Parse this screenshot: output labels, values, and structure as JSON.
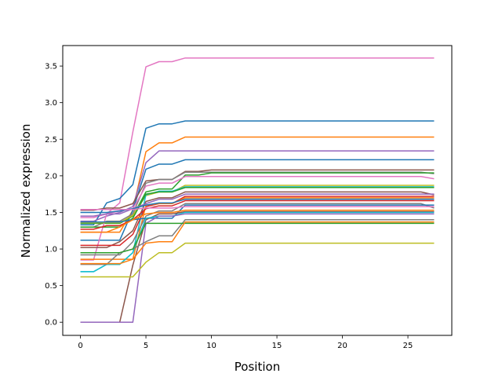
{
  "chart_data": {
    "type": "line",
    "title": "",
    "xlabel": "Position",
    "ylabel": "Normalized expression",
    "xlim": [
      -1.35,
      28.35
    ],
    "ylim": [
      -0.18,
      3.78
    ],
    "xticks": [
      0,
      5,
      10,
      15,
      20,
      25
    ],
    "yticks": [
      0.0,
      0.5,
      1.0,
      1.5,
      2.0,
      2.5,
      3.0,
      3.5
    ],
    "grid": false,
    "legend": "none",
    "x": [
      0,
      1,
      2,
      3,
      4,
      5,
      6,
      7,
      8,
      9,
      10,
      11,
      12,
      13,
      14,
      15,
      16,
      17,
      18,
      19,
      20,
      21,
      22,
      23,
      24,
      25,
      26,
      27
    ],
    "series": [
      {
        "color": "#e377c2",
        "values": [
          1.43,
          1.43,
          1.48,
          1.63,
          2.6,
          3.49,
          3.56,
          3.56,
          3.61,
          3.61,
          3.61,
          3.61,
          3.61,
          3.61,
          3.61,
          3.61,
          3.61,
          3.61,
          3.61,
          3.61,
          3.61,
          3.61,
          3.61,
          3.61,
          3.61,
          3.61,
          3.61,
          3.61
        ]
      },
      {
        "color": "#1f77b4",
        "values": [
          1.33,
          1.33,
          1.63,
          1.69,
          1.88,
          2.65,
          2.71,
          2.71,
          2.75,
          2.75,
          2.75,
          2.75,
          2.75,
          2.75,
          2.75,
          2.75,
          2.75,
          2.75,
          2.75,
          2.75,
          2.75,
          2.75,
          2.75,
          2.75,
          2.75,
          2.75,
          2.75,
          2.75
        ]
      },
      {
        "color": "#ff7f0e",
        "values": [
          1.23,
          1.23,
          1.23,
          1.23,
          1.53,
          2.33,
          2.45,
          2.45,
          2.53,
          2.53,
          2.53,
          2.53,
          2.53,
          2.53,
          2.53,
          2.53,
          2.53,
          2.53,
          2.53,
          2.53,
          2.53,
          2.53,
          2.53,
          2.53,
          2.53,
          2.53,
          2.53,
          2.53
        ]
      },
      {
        "color": "#9467bd",
        "values": [
          1.38,
          1.38,
          1.45,
          1.5,
          1.58,
          2.18,
          2.34,
          2.34,
          2.34,
          2.34,
          2.34,
          2.34,
          2.34,
          2.34,
          2.34,
          2.34,
          2.34,
          2.34,
          2.34,
          2.34,
          2.34,
          2.34,
          2.34,
          2.34,
          2.34,
          2.34,
          2.34,
          2.34
        ]
      },
      {
        "color": "#1f77b4",
        "values": [
          1.12,
          1.12,
          1.12,
          1.12,
          1.53,
          2.09,
          2.16,
          2.16,
          2.22,
          2.22,
          2.22,
          2.22,
          2.22,
          2.22,
          2.22,
          2.22,
          2.22,
          2.22,
          2.22,
          2.22,
          2.22,
          2.22,
          2.22,
          2.22,
          2.22,
          2.22,
          2.22,
          2.22
        ]
      },
      {
        "color": "#8c564b",
        "values": [
          1.53,
          1.53,
          1.56,
          1.56,
          1.62,
          1.93,
          1.95,
          1.95,
          2.06,
          2.06,
          2.08,
          2.08,
          2.08,
          2.08,
          2.08,
          2.08,
          2.08,
          2.08,
          2.08,
          2.08,
          2.08,
          2.08,
          2.08,
          2.08,
          2.08,
          2.08,
          2.08,
          2.08
        ]
      },
      {
        "color": "#7f7f7f",
        "values": [
          1.3,
          1.3,
          1.38,
          1.38,
          1.48,
          1.9,
          1.95,
          1.95,
          2.05,
          2.05,
          2.05,
          2.05,
          2.05,
          2.05,
          2.05,
          2.05,
          2.05,
          2.05,
          2.05,
          2.05,
          2.05,
          2.05,
          2.05,
          2.05,
          2.05,
          2.05,
          2.05,
          2.03
        ]
      },
      {
        "color": "#2ca02c",
        "values": [
          1.35,
          1.35,
          1.35,
          1.35,
          1.45,
          1.78,
          1.82,
          1.82,
          2.01,
          2.01,
          2.04,
          2.04,
          2.04,
          2.04,
          2.04,
          2.04,
          2.04,
          2.04,
          2.04,
          2.04,
          2.04,
          2.04,
          2.04,
          2.04,
          2.04,
          2.04,
          2.04,
          2.04
        ]
      },
      {
        "color": "#e377c2",
        "values": [
          0.85,
          0.85,
          1.48,
          1.52,
          1.55,
          1.86,
          1.9,
          1.9,
          1.99,
          1.99,
          1.99,
          1.99,
          1.99,
          1.99,
          1.99,
          1.99,
          1.99,
          1.99,
          1.99,
          1.99,
          1.99,
          1.99,
          1.99,
          1.99,
          1.99,
          1.99,
          1.99,
          1.96
        ]
      },
      {
        "color": "#bcbd22",
        "values": [
          1.36,
          1.36,
          1.36,
          1.36,
          1.46,
          1.73,
          1.78,
          1.78,
          1.87,
          1.87,
          1.87,
          1.87,
          1.87,
          1.87,
          1.87,
          1.87,
          1.87,
          1.87,
          1.87,
          1.87,
          1.87,
          1.87,
          1.87,
          1.87,
          1.87,
          1.87,
          1.87,
          1.87
        ]
      },
      {
        "color": "#17becf",
        "values": [
          0.69,
          0.69,
          0.79,
          0.79,
          0.95,
          1.74,
          1.79,
          1.79,
          1.85,
          1.85,
          1.85,
          1.85,
          1.85,
          1.85,
          1.85,
          1.85,
          1.85,
          1.85,
          1.85,
          1.85,
          1.85,
          1.85,
          1.85,
          1.85,
          1.85,
          1.85,
          1.85,
          1.85
        ]
      },
      {
        "color": "#2ca02c",
        "values": [
          1.3,
          1.3,
          1.3,
          1.3,
          1.42,
          1.75,
          1.78,
          1.78,
          1.84,
          1.84,
          1.84,
          1.84,
          1.84,
          1.84,
          1.84,
          1.84,
          1.84,
          1.84,
          1.84,
          1.84,
          1.84,
          1.84,
          1.84,
          1.84,
          1.84,
          1.84,
          1.84,
          1.84
        ]
      },
      {
        "color": "#8c564b",
        "values": [
          1.02,
          1.02,
          1.02,
          1.1,
          1.25,
          1.65,
          1.7,
          1.7,
          1.78,
          1.78,
          1.78,
          1.78,
          1.78,
          1.78,
          1.78,
          1.78,
          1.78,
          1.78,
          1.78,
          1.78,
          1.78,
          1.78,
          1.78,
          1.78,
          1.78,
          1.78,
          1.78,
          1.74
        ]
      },
      {
        "color": "#9467bd",
        "values": [
          1.45,
          1.45,
          1.48,
          1.48,
          1.55,
          1.62,
          1.68,
          1.68,
          1.75,
          1.75,
          1.75,
          1.75,
          1.75,
          1.75,
          1.75,
          1.75,
          1.75,
          1.75,
          1.75,
          1.75,
          1.75,
          1.75,
          1.75,
          1.75,
          1.75,
          1.75,
          1.75,
          1.75
        ]
      },
      {
        "color": "#d62728",
        "values": [
          1.05,
          1.05,
          1.05,
          1.05,
          1.2,
          1.58,
          1.62,
          1.62,
          1.72,
          1.72,
          1.72,
          1.72,
          1.72,
          1.72,
          1.72,
          1.72,
          1.72,
          1.72,
          1.72,
          1.72,
          1.72,
          1.72,
          1.72,
          1.72,
          1.72,
          1.72,
          1.72,
          1.72
        ]
      },
      {
        "color": "#ff7f0e",
        "values": [
          0.86,
          0.86,
          0.86,
          0.86,
          0.86,
          1.6,
          1.62,
          1.62,
          1.7,
          1.7,
          1.7,
          1.7,
          1.7,
          1.7,
          1.7,
          1.7,
          1.7,
          1.7,
          1.7,
          1.7,
          1.7,
          1.7,
          1.7,
          1.7,
          1.7,
          1.7,
          1.7,
          1.7
        ]
      },
      {
        "color": "#1f77b4",
        "values": [
          1.5,
          1.5,
          1.5,
          1.52,
          1.55,
          1.6,
          1.63,
          1.63,
          1.68,
          1.68,
          1.68,
          1.68,
          1.68,
          1.68,
          1.68,
          1.68,
          1.68,
          1.68,
          1.68,
          1.68,
          1.68,
          1.68,
          1.68,
          1.68,
          1.68,
          1.68,
          1.68,
          1.68
        ]
      },
      {
        "color": "#d62728",
        "values": [
          1.27,
          1.27,
          1.32,
          1.32,
          1.4,
          1.55,
          1.59,
          1.59,
          1.66,
          1.66,
          1.66,
          1.66,
          1.66,
          1.66,
          1.66,
          1.66,
          1.66,
          1.66,
          1.66,
          1.66,
          1.66,
          1.66,
          1.66,
          1.66,
          1.66,
          1.66,
          1.66,
          1.66
        ]
      },
      {
        "color": "#7f7f7f",
        "values": [
          0.92,
          0.92,
          0.92,
          0.92,
          1.1,
          1.45,
          1.52,
          1.52,
          1.62,
          1.62,
          1.62,
          1.62,
          1.62,
          1.62,
          1.62,
          1.62,
          1.62,
          1.62,
          1.62,
          1.62,
          1.62,
          1.62,
          1.62,
          1.62,
          1.62,
          1.62,
          1.62,
          1.56
        ]
      },
      {
        "color": "#1f77b4",
        "values": [
          1.37,
          1.37,
          1.37,
          1.37,
          1.4,
          1.42,
          1.42,
          1.42,
          1.6,
          1.6,
          1.6,
          1.6,
          1.6,
          1.6,
          1.6,
          1.6,
          1.6,
          1.6,
          1.6,
          1.6,
          1.6,
          1.6,
          1.6,
          1.6,
          1.6,
          1.6,
          1.6,
          1.6
        ]
      },
      {
        "color": "#e377c2",
        "values": [
          1.54,
          1.54,
          1.54,
          1.54,
          1.54,
          1.56,
          1.56,
          1.56,
          1.58,
          1.58,
          1.58,
          1.58,
          1.58,
          1.58,
          1.58,
          1.58,
          1.58,
          1.58,
          1.58,
          1.58,
          1.58,
          1.58,
          1.58,
          1.58,
          1.58,
          1.58,
          1.58,
          1.58
        ]
      },
      {
        "color": "#ff7f0e",
        "values": [
          1.23,
          1.23,
          1.23,
          1.3,
          1.4,
          1.48,
          1.5,
          1.5,
          1.53,
          1.53,
          1.53,
          1.53,
          1.53,
          1.53,
          1.53,
          1.53,
          1.53,
          1.53,
          1.53,
          1.53,
          1.53,
          1.53,
          1.53,
          1.53,
          1.53,
          1.53,
          1.53,
          1.53
        ]
      },
      {
        "color": "#8c564b",
        "values": [
          0.0,
          0.0,
          0.0,
          0.0,
          0.78,
          1.4,
          1.48,
          1.48,
          1.51,
          1.51,
          1.51,
          1.51,
          1.51,
          1.51,
          1.51,
          1.51,
          1.51,
          1.51,
          1.51,
          1.51,
          1.51,
          1.51,
          1.51,
          1.51,
          1.51,
          1.51,
          1.51,
          1.51
        ]
      },
      {
        "color": "#17becf",
        "values": [
          0.69,
          0.69,
          0.79,
          0.79,
          0.95,
          1.42,
          1.45,
          1.45,
          1.5,
          1.5,
          1.5,
          1.5,
          1.5,
          1.5,
          1.5,
          1.5,
          1.5,
          1.5,
          1.5,
          1.5,
          1.5,
          1.5,
          1.5,
          1.5,
          1.5,
          1.5,
          1.5,
          1.5
        ]
      },
      {
        "color": "#9467bd",
        "values": [
          0.0,
          0.0,
          0.0,
          0.0,
          0.0,
          1.35,
          1.45,
          1.45,
          1.48,
          1.48,
          1.48,
          1.48,
          1.48,
          1.48,
          1.48,
          1.48,
          1.48,
          1.48,
          1.48,
          1.48,
          1.48,
          1.48,
          1.48,
          1.48,
          1.48,
          1.48,
          1.48,
          1.48
        ]
      },
      {
        "color": "#7f7f7f",
        "values": [
          0.79,
          0.79,
          0.79,
          0.95,
          1.0,
          1.1,
          1.18,
          1.18,
          1.4,
          1.4,
          1.4,
          1.4,
          1.4,
          1.4,
          1.4,
          1.4,
          1.4,
          1.4,
          1.4,
          1.4,
          1.4,
          1.4,
          1.4,
          1.4,
          1.4,
          1.4,
          1.4,
          1.4
        ]
      },
      {
        "color": "#2ca02c",
        "values": [
          0.95,
          0.95,
          0.95,
          0.95,
          1.0,
          1.35,
          1.35,
          1.35,
          1.35,
          1.35,
          1.35,
          1.35,
          1.35,
          1.35,
          1.35,
          1.35,
          1.35,
          1.35,
          1.35,
          1.35,
          1.35,
          1.35,
          1.35,
          1.35,
          1.35,
          1.35,
          1.35,
          1.35
        ]
      },
      {
        "color": "#ff7f0e",
        "values": [
          0.8,
          0.8,
          0.8,
          0.8,
          0.86,
          1.08,
          1.1,
          1.1,
          1.37,
          1.37,
          1.37,
          1.37,
          1.37,
          1.37,
          1.37,
          1.37,
          1.37,
          1.37,
          1.37,
          1.37,
          1.37,
          1.37,
          1.37,
          1.37,
          1.37,
          1.37,
          1.37,
          1.37
        ]
      },
      {
        "color": "#bcbd22",
        "values": [
          0.62,
          0.62,
          0.62,
          0.62,
          0.62,
          0.82,
          0.95,
          0.95,
          1.08,
          1.08,
          1.08,
          1.08,
          1.08,
          1.08,
          1.08,
          1.08,
          1.08,
          1.08,
          1.08,
          1.08,
          1.08,
          1.08,
          1.08,
          1.08,
          1.08,
          1.08,
          1.08,
          1.08
        ]
      }
    ]
  }
}
